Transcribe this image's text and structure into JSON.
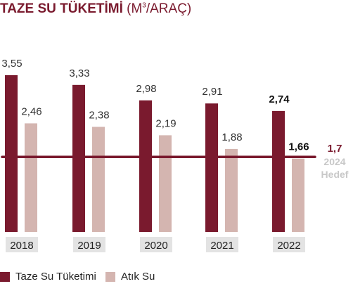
{
  "chart_data": {
    "type": "bar",
    "title": "TAZE SU TÜKETİMİ",
    "title_unit_prefix": "(M",
    "title_unit_sup": "3",
    "title_unit_suffix": "/ARAÇ)",
    "categories": [
      "2018",
      "2019",
      "2020",
      "2021",
      "2022"
    ],
    "series": [
      {
        "name": "Taze Su Tüketimi",
        "values": [
          3.55,
          3.33,
          2.98,
          2.91,
          2.74
        ],
        "labels": [
          "3,55",
          "3,33",
          "2,98",
          "2,91",
          "2,74"
        ],
        "color": "#7a1a2e"
      },
      {
        "name": "Atık Su",
        "values": [
          2.46,
          2.38,
          2.19,
          1.88,
          1.66
        ],
        "labels": [
          "2,46",
          "2,38",
          "2,19",
          "1,88",
          "1,66"
        ],
        "color": "#d4b5b0"
      }
    ],
    "bold_labels": [
      "2,74",
      "1,66"
    ],
    "target": {
      "value": 1.7,
      "label": "1,7",
      "year_label": "2024",
      "caption": "Hedef",
      "color": "#7a1a2e"
    },
    "ylim": [
      0,
      3.55
    ],
    "grid": false,
    "legend_position": "bottom-left"
  }
}
